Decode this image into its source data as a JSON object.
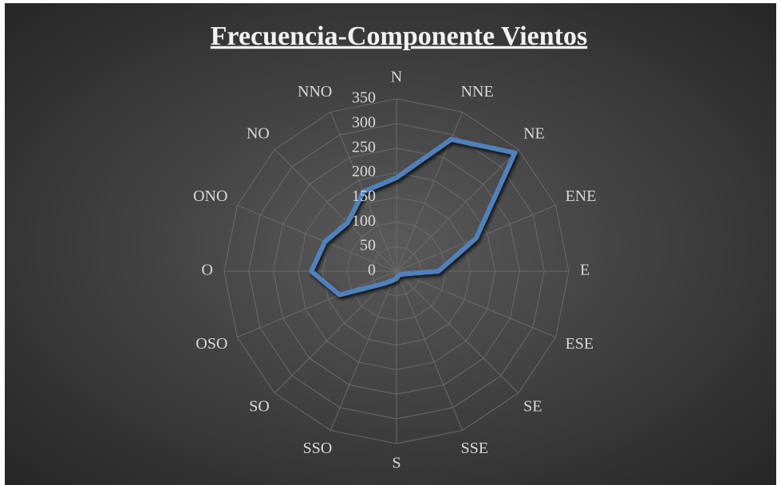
{
  "chart_data": {
    "type": "radar",
    "title": "Frecuencia-Componente Vientos",
    "categories": [
      "N",
      "NNE",
      "NE",
      "ENE",
      "E",
      "ESE",
      "SE",
      "SSE",
      "S",
      "SSO",
      "SO",
      "OSO",
      "O",
      "ONO",
      "NO",
      "NNO"
    ],
    "values": [
      190,
      290,
      340,
      175,
      85,
      15,
      10,
      10,
      15,
      20,
      35,
      125,
      173,
      157,
      140,
      175
    ],
    "color": "#4f81bd",
    "ylim": [
      0,
      350
    ],
    "yticks": [
      0,
      50,
      100,
      150,
      200,
      250,
      300,
      350
    ],
    "grid": true
  }
}
